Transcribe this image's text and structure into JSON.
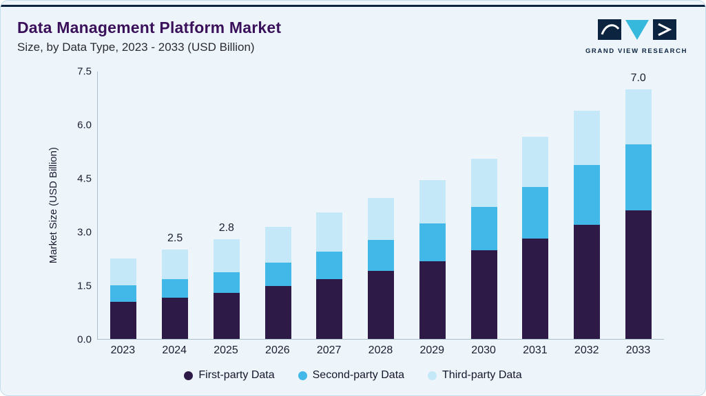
{
  "header": {
    "title": "Data Management Platform Market",
    "subtitle": "Size, by Data Type, 2023 - 2033 (USD Billion)",
    "logo_text": "GRAND VIEW RESEARCH"
  },
  "chart_data": {
    "type": "bar",
    "stacked": true,
    "title": "Data Management Platform Market Size, by Data Type, 2023 - 2033 (USD Billion)",
    "categories": [
      "2023",
      "2024",
      "2025",
      "2026",
      "2027",
      "2028",
      "2029",
      "2030",
      "2031",
      "2032",
      "2033"
    ],
    "series": [
      {
        "name": "First-party Data",
        "color": "#2E1A47",
        "values": [
          1.05,
          1.15,
          1.3,
          1.48,
          1.68,
          1.9,
          2.18,
          2.48,
          2.82,
          3.2,
          3.6
        ]
      },
      {
        "name": "Second-party Data",
        "color": "#41B8E8",
        "values": [
          0.45,
          0.52,
          0.58,
          0.66,
          0.76,
          0.88,
          1.05,
          1.22,
          1.45,
          1.68,
          1.85
        ]
      },
      {
        "name": "Third-party Data",
        "color": "#C5E8F9",
        "values": [
          0.75,
          0.83,
          0.92,
          1.01,
          1.11,
          1.17,
          1.22,
          1.35,
          1.4,
          1.52,
          1.55
        ]
      }
    ],
    "bar_labels": [
      "",
      "2.5",
      "2.8",
      "",
      "",
      "",
      "",
      "",
      "",
      "",
      "7.0"
    ],
    "xlabel": "",
    "ylabel": "Market Size (USD Billion)",
    "ylim": [
      0,
      7.5
    ],
    "yticks": [
      0.0,
      1.5,
      3.0,
      4.5,
      6.0,
      7.5
    ],
    "grid": false,
    "legend_position": "bottom"
  },
  "colors": {
    "background": "#EDF5FA",
    "card_border": "#C3DDEC",
    "top_rule": "#0D2441",
    "title": "#3A105A",
    "axis_text": "#1C1C30",
    "axis_line": "#A9BECB",
    "logo_navy": "#0D2441",
    "logo_teal": "#35B8DC"
  }
}
